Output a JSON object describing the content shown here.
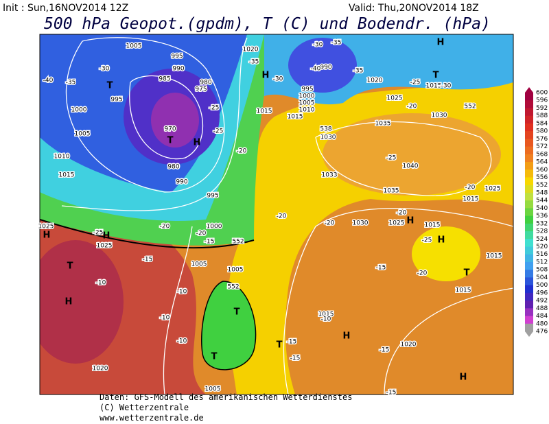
{
  "header": {
    "init": "Init : Sun,16NOV2014 12Z",
    "valid": "Valid: Thu,20NOV2014 18Z",
    "title": "500 hPa Geopot.(gpdm), T (C) und Bodendr. (hPa)"
  },
  "colorbar": {
    "labels": [
      "600",
      "596",
      "592",
      "588",
      "584",
      "580",
      "576",
      "572",
      "568",
      "564",
      "560",
      "556",
      "552",
      "548",
      "544",
      "540",
      "536",
      "532",
      "528",
      "524",
      "520",
      "516",
      "512",
      "508",
      "504",
      "500",
      "496",
      "492",
      "488",
      "484",
      "480",
      "476"
    ]
  },
  "map": {
    "labels": [
      "1005",
      "1020",
      "995",
      "990",
      "985",
      "980",
      "975",
      "970",
      "980",
      "990",
      "995",
      "1000",
      "1005",
      "1005",
      "1010",
      "1015",
      "1000",
      "1005",
      "995",
      "1025",
      "1020",
      "1025",
      "1015",
      "1015",
      "1030",
      "1035",
      "1030",
      "1025",
      "1020",
      "1015",
      "1035",
      "1040",
      "1030",
      "1025",
      "1015",
      "1015",
      "1015",
      "1015",
      "1020",
      "1025",
      "1015",
      "1033",
      "552",
      "552",
      "552",
      "538",
      "990",
      "995",
      "1000",
      "1005",
      "1010",
      "1005",
      "-40",
      "-35",
      "-30",
      "-25",
      "-25",
      "-20",
      "-35",
      "-30",
      "-40",
      "-35",
      "-35",
      "-30",
      "-30",
      "-25",
      "-20",
      "-25",
      "-20",
      "-20",
      "-25",
      "-20",
      "-20",
      "-15",
      "-15",
      "-15",
      "-20",
      "-25",
      "-10",
      "-10",
      "-10",
      "-10",
      "-15",
      "-15",
      "-10",
      "-15",
      "-15",
      "-20",
      "-20",
      "T",
      "T",
      "H",
      "H",
      "H",
      "T",
      "H",
      "H",
      "T",
      "H",
      "T",
      "T",
      "H",
      "T",
      "H",
      "H",
      "T",
      "H"
    ]
  },
  "footer": {
    "lines": [
      "Daten: GFS-Modell des amerikanischen Wetterdienstes",
      "(C) Wetterzentrale",
      "www.wetterzentrale.de"
    ]
  }
}
